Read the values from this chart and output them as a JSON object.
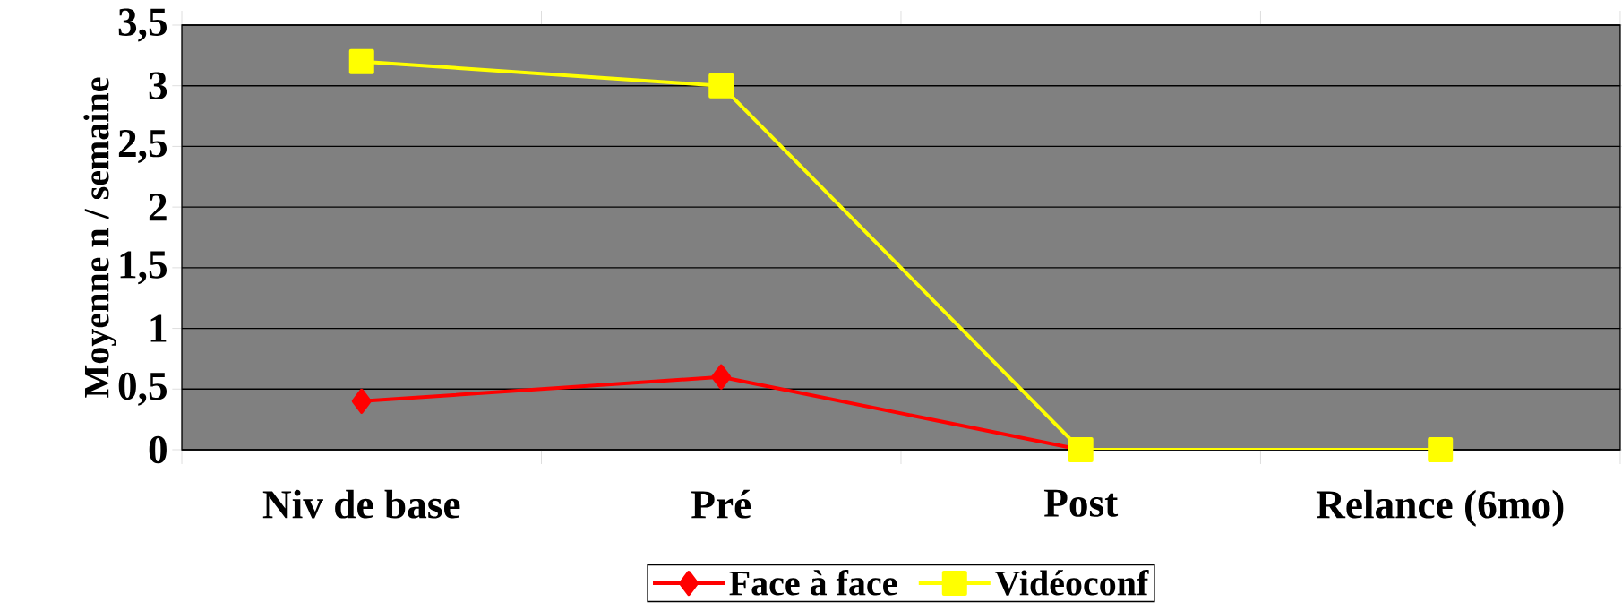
{
  "chart_data": {
    "type": "line",
    "ylabel": "Moyenne n / semaine",
    "categories": [
      "Niv de base",
      "Pré",
      "Post",
      "Relance (6mo)"
    ],
    "series": [
      {
        "name": "Face à face",
        "color": "#ff0000",
        "marker": "diamond",
        "values": [
          0.4,
          0.6,
          0,
          0
        ]
      },
      {
        "name": "Vidéoconf",
        "color": "#ffff00",
        "marker": "square",
        "values": [
          3.2,
          3.0,
          0,
          0
        ]
      }
    ],
    "ylim": [
      0,
      3.5
    ],
    "yticks": [
      0,
      {
        "value": 0.5,
        "label": "0,5"
      },
      1,
      {
        "value": 1.5,
        "label": "1,5"
      },
      2,
      {
        "value": 2.5,
        "label": "2,5"
      },
      3,
      {
        "value": 3.5,
        "label": "3,5"
      }
    ],
    "grid": "y",
    "legend": "bottom",
    "line_style": "solid"
  }
}
